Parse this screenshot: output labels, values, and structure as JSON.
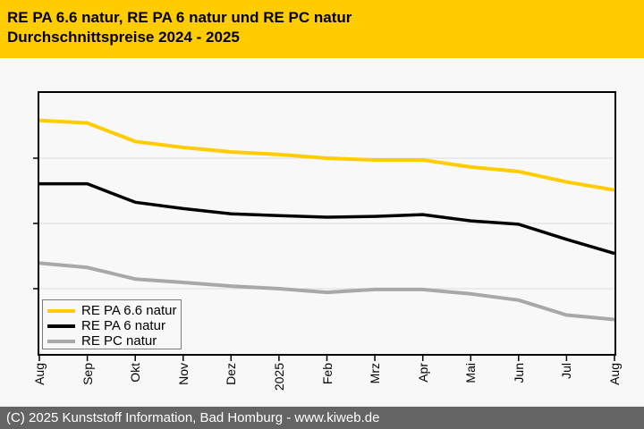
{
  "header": {
    "title_line1": "RE PA 6.6 natur, RE PA 6 natur und RE PC natur",
    "title_line2": "Durchschnittspreise 2024 - 2025"
  },
  "footer": {
    "text": "(C) 2025 Kunststoff Information, Bad Homburg - www.kiweb.de"
  },
  "colors": {
    "header_bg": "#FFCC00",
    "page_bg": "#F8F8F8",
    "footer_bg": "#646464",
    "footer_text": "#FFFFFF",
    "grid": "#DCDCDC",
    "axis": "#000000",
    "legend_border": "#7A7A7A"
  },
  "chart_data": {
    "type": "line",
    "title": "RE PA 6.6 natur, RE PA 6 natur und RE PC natur Durchschnittspreise 2024 - 2025",
    "x_labels": [
      "Aug",
      "Sep",
      "Okt",
      "Nov",
      "Dez",
      "2025",
      "Feb",
      "Mrz",
      "Apr",
      "Mai",
      "Jun",
      "Jul",
      "Aug"
    ],
    "xlabel": "",
    "ylabel": "",
    "y_axis_labeled": false,
    "ylim": [
      0,
      100
    ],
    "gridlines_at": [
      25,
      50,
      75
    ],
    "grid": "horizontal",
    "legend_position": "bottom-left",
    "note": "Y-axis carries no tick labels in the source image; series values are relative price levels (0-100 of plot height) estimated from pixel positions.",
    "series": [
      {
        "name": "RE PA 6.6 natur",
        "color": "#FFCC00",
        "line_width": 4,
        "values": [
          89.5,
          88.5,
          81.4,
          79.1,
          77.4,
          76.4,
          75.0,
          74.3,
          74.3,
          71.6,
          69.9,
          65.9,
          62.8
        ]
      },
      {
        "name": "RE PA 6 natur",
        "color": "#000000",
        "line_width": 3.5,
        "values": [
          65.2,
          65.2,
          58.1,
          55.7,
          53.7,
          53.0,
          52.4,
          52.7,
          53.4,
          51.0,
          49.7,
          43.9,
          38.5
        ]
      },
      {
        "name": "RE PC natur",
        "color": "#A8A8A8",
        "line_width": 4,
        "values": [
          34.8,
          33.1,
          28.7,
          27.4,
          26.0,
          25.0,
          23.6,
          24.7,
          24.7,
          23.0,
          20.6,
          14.9,
          13.2
        ]
      }
    ]
  }
}
